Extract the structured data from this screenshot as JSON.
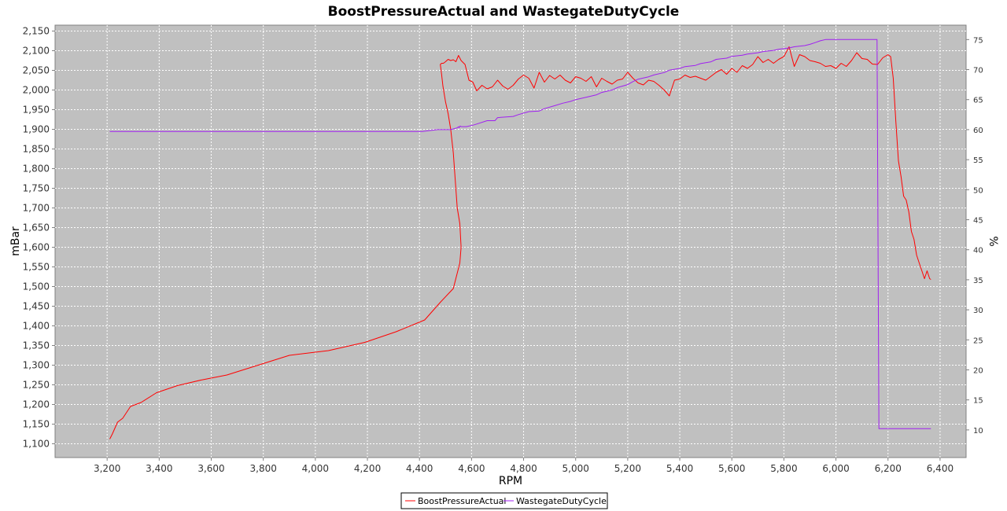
{
  "chart_data": {
    "type": "line",
    "title": "BoostPressureActual and WastegateDutyCycle",
    "xlabel": "RPM",
    "ylabel": "mBar",
    "y2label": "%",
    "xlim": [
      3000,
      6500
    ],
    "ylim": [
      1065,
      2165
    ],
    "y2lim": [
      5.4,
      77.4
    ],
    "xticks": [
      3200,
      3400,
      3600,
      3800,
      4000,
      4200,
      4400,
      4600,
      4800,
      5000,
      5200,
      5400,
      5600,
      5800,
      6000,
      6200,
      6400
    ],
    "yticks": [
      1100,
      1150,
      1200,
      1250,
      1300,
      1350,
      1400,
      1450,
      1500,
      1550,
      1600,
      1650,
      1700,
      1750,
      1800,
      1850,
      1900,
      1950,
      2000,
      2050,
      2100,
      2150
    ],
    "y2ticks": [
      10,
      15,
      20,
      25,
      30,
      35,
      40,
      45,
      50,
      55,
      60,
      65,
      70,
      75
    ],
    "grid": true,
    "legend": "bottom",
    "series": [
      {
        "name": "BoostPressureActual",
        "color": "#ff0000",
        "axis": "left",
        "x": [
          3210,
          3220,
          3240,
          3260,
          3290,
          3330,
          3390,
          3470,
          3560,
          3660,
          3780,
          3900,
          4050,
          4190,
          4310,
          4420,
          4480,
          4530,
          4555,
          4560,
          4555,
          4545,
          4530,
          4520,
          4510,
          4500,
          4490,
          4485,
          4480,
          4485,
          4492,
          4500,
          4510,
          4520,
          4530,
          4540,
          4550,
          4560,
          4575,
          4590,
          4605,
          4620,
          4640,
          4660,
          4680,
          4700,
          4720,
          4740,
          4760,
          4780,
          4800,
          4820,
          4840,
          4860,
          4880,
          4900,
          4920,
          4940,
          4960,
          4980,
          5000,
          5020,
          5040,
          5060,
          5080,
          5100,
          5120,
          5140,
          5160,
          5180,
          5200,
          5220,
          5240,
          5260,
          5280,
          5300,
          5320,
          5340,
          5360,
          5380,
          5400,
          5420,
          5440,
          5460,
          5480,
          5500,
          5520,
          5540,
          5560,
          5580,
          5600,
          5620,
          5640,
          5660,
          5680,
          5700,
          5720,
          5740,
          5760,
          5780,
          5800,
          5820,
          5840,
          5860,
          5880,
          5900,
          5920,
          5940,
          5960,
          5980,
          6000,
          6020,
          6040,
          6060,
          6080,
          6100,
          6120,
          6140,
          6160,
          6180,
          6200,
          6210,
          6220,
          6230,
          6240,
          6250,
          6260,
          6270,
          6280,
          6290,
          6300,
          6310,
          6320,
          6330,
          6340,
          6350,
          6360,
          6365
        ],
        "values": [
          1112,
          1125,
          1155,
          1165,
          1195,
          1205,
          1230,
          1248,
          1262,
          1275,
          1300,
          1325,
          1337,
          1358,
          1385,
          1415,
          1460,
          1495,
          1560,
          1600,
          1660,
          1700,
          1840,
          1900,
          1940,
          1970,
          2010,
          2040,
          2065,
          2068,
          2068,
          2072,
          2078,
          2075,
          2077,
          2072,
          2088,
          2075,
          2065,
          2025,
          2020,
          1998,
          2012,
          2003,
          2008,
          2025,
          2010,
          2002,
          2012,
          2028,
          2038,
          2030,
          2005,
          2045,
          2020,
          2037,
          2028,
          2038,
          2025,
          2018,
          2034,
          2030,
          2022,
          2034,
          2008,
          2030,
          2022,
          2015,
          2025,
          2028,
          2045,
          2030,
          2018,
          2013,
          2025,
          2022,
          2012,
          2000,
          1985,
          2025,
          2028,
          2038,
          2032,
          2035,
          2030,
          2025,
          2035,
          2045,
          2052,
          2040,
          2055,
          2045,
          2062,
          2055,
          2065,
          2085,
          2070,
          2078,
          2068,
          2078,
          2085,
          2110,
          2060,
          2090,
          2085,
          2075,
          2072,
          2068,
          2060,
          2062,
          2055,
          2068,
          2060,
          2075,
          2095,
          2080,
          2078,
          2066,
          2065,
          2082,
          2090,
          2085,
          2030,
          1920,
          1820,
          1780,
          1730,
          1720,
          1690,
          1640,
          1620,
          1580,
          1560,
          1540,
          1520,
          1540,
          1520,
          1518
        ]
      },
      {
        "name": "WastegateDutyCycle",
        "color": "#a020f0",
        "axis": "right",
        "x": [
          3210,
          4410,
          4470,
          4520,
          4545,
          4550,
          4552,
          4556,
          4560,
          4580,
          4610,
          4660,
          4690,
          4700,
          4760,
          4780,
          4820,
          4860,
          4880,
          4920,
          4950,
          4980,
          5000,
          5040,
          5080,
          5100,
          5140,
          5160,
          5200,
          5220,
          5240,
          5280,
          5300,
          5340,
          5360,
          5400,
          5420,
          5460,
          5480,
          5520,
          5540,
          5580,
          5600,
          5640,
          5660,
          5700,
          5720,
          5760,
          5780,
          5820,
          5840,
          5880,
          5900,
          5920,
          5940,
          5960,
          6000,
          6020,
          6080,
          6100,
          6140,
          6158,
          6165,
          6200,
          6365
        ],
        "values": [
          59.7,
          59.7,
          60.0,
          60.0,
          60.3,
          60.5,
          60.3,
          60.6,
          60.5,
          60.5,
          60.8,
          61.5,
          61.5,
          62.0,
          62.2,
          62.5,
          63.0,
          63.1,
          63.5,
          64.0,
          64.4,
          64.7,
          65.0,
          65.4,
          65.8,
          66.2,
          66.6,
          67.0,
          67.5,
          68.0,
          68.4,
          68.8,
          69.1,
          69.5,
          69.9,
          70.2,
          70.5,
          70.7,
          71.0,
          71.3,
          71.7,
          71.9,
          72.2,
          72.4,
          72.6,
          72.8,
          73.0,
          73.2,
          73.4,
          73.6,
          73.8,
          74.0,
          74.2,
          74.5,
          74.8,
          75.0,
          75.0,
          75.0,
          75.0,
          75.0,
          75.0,
          75.0,
          10.2,
          10.2,
          10.2
        ]
      }
    ]
  }
}
